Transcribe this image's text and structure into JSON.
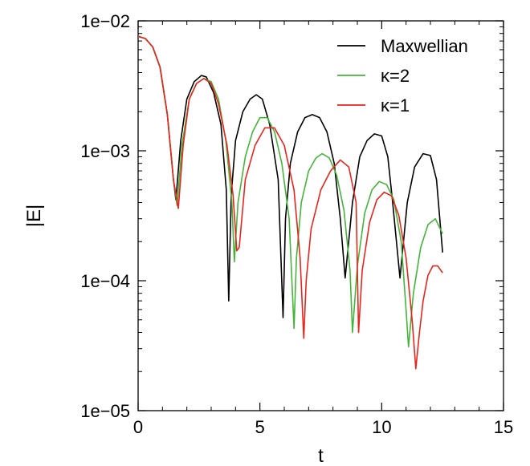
{
  "chart_data": {
    "type": "line",
    "title": "",
    "xlabel": "t",
    "ylabel": "|E|",
    "xlim": [
      0,
      15
    ],
    "ylim": [
      1e-05,
      0.01
    ],
    "yscale": "log",
    "grid": false,
    "legend_position": "top-right",
    "x_ticks": [
      0,
      5,
      10,
      15
    ],
    "x_tick_labels": [
      "0",
      "5",
      "10",
      "15"
    ],
    "y_ticks": [
      1e-05,
      0.0001,
      0.001,
      0.01
    ],
    "y_tick_labels": [
      "1e−05",
      "1e−04",
      "1e−03",
      "1e−02"
    ],
    "series": [
      {
        "name": "Maxwellian",
        "color": "#000000",
        "x": [
          0.0,
          0.3,
          0.6,
          0.9,
          1.2,
          1.45,
          1.55,
          1.75,
          2.0,
          2.3,
          2.6,
          2.8,
          3.1,
          3.4,
          3.62,
          3.72,
          3.82,
          4.0,
          4.3,
          4.6,
          4.85,
          5.1,
          5.4,
          5.75,
          5.95,
          6.05,
          6.25,
          6.55,
          6.85,
          7.15,
          7.45,
          7.75,
          8.05,
          8.3,
          8.5,
          8.8,
          9.1,
          9.4,
          9.7,
          10.0,
          10.25,
          10.45,
          10.75,
          11.05,
          11.35,
          11.7,
          12.0,
          12.25,
          12.5
        ],
        "y": [
          0.0076,
          0.0073,
          0.0063,
          0.0044,
          0.0019,
          0.0006,
          0.00042,
          0.0012,
          0.0025,
          0.0034,
          0.0038,
          0.0037,
          0.0028,
          0.0016,
          0.0005,
          7e-05,
          0.00045,
          0.0012,
          0.002,
          0.0025,
          0.0027,
          0.0025,
          0.0016,
          0.0006,
          5.2e-05,
          0.0003,
          0.0008,
          0.0014,
          0.0018,
          0.0019,
          0.0018,
          0.0014,
          0.0008,
          0.0003,
          0.000105,
          0.0004,
          0.0009,
          0.0012,
          0.00135,
          0.0013,
          0.0009,
          0.0004,
          0.000105,
          0.0004,
          0.00075,
          0.00095,
          0.00092,
          0.0006,
          0.000165
        ]
      },
      {
        "name": "κ=2",
        "color": "#45b53a",
        "x": [
          0.0,
          0.3,
          0.6,
          0.9,
          1.2,
          1.45,
          1.6,
          1.8,
          2.1,
          2.4,
          2.7,
          3.0,
          3.3,
          3.6,
          3.85,
          3.95,
          4.1,
          4.4,
          4.7,
          5.0,
          5.3,
          5.6,
          5.9,
          6.2,
          6.4,
          6.5,
          6.7,
          7.0,
          7.3,
          7.55,
          7.85,
          8.15,
          8.45,
          8.7,
          8.8,
          9.0,
          9.3,
          9.6,
          9.9,
          10.2,
          10.5,
          10.8,
          11.0,
          11.1,
          11.3,
          11.6,
          11.9,
          12.2,
          12.5
        ],
        "y": [
          0.0076,
          0.0073,
          0.0063,
          0.0044,
          0.0019,
          0.0006,
          0.00038,
          0.0011,
          0.0025,
          0.0033,
          0.0036,
          0.0034,
          0.0025,
          0.0012,
          0.0004,
          0.00014,
          0.0004,
          0.0009,
          0.0014,
          0.0018,
          0.0018,
          0.0014,
          0.0008,
          0.0003,
          4.3e-05,
          0.00015,
          0.0004,
          0.0007,
          0.00088,
          0.00095,
          0.00088,
          0.00065,
          0.00035,
          0.00012,
          4e-05,
          0.00013,
          0.00033,
          0.0005,
          0.00058,
          0.00055,
          0.00042,
          0.0002,
          6e-05,
          3.1e-05,
          8e-05,
          0.00018,
          0.00027,
          0.0003,
          0.00023
        ]
      },
      {
        "name": "κ=1",
        "color": "#e8251d",
        "x": [
          0.0,
          0.3,
          0.6,
          0.9,
          1.2,
          1.45,
          1.65,
          1.85,
          2.1,
          2.4,
          2.7,
          3.0,
          3.3,
          3.65,
          3.9,
          4.05,
          4.15,
          4.4,
          4.8,
          5.2,
          5.6,
          6.0,
          6.4,
          6.65,
          6.8,
          6.9,
          7.1,
          7.5,
          7.9,
          8.3,
          8.65,
          8.95,
          9.05,
          9.2,
          9.5,
          9.8,
          10.1,
          10.4,
          10.7,
          11.0,
          11.25,
          11.4,
          11.55,
          11.7,
          11.9,
          12.1,
          12.3,
          12.5
        ],
        "y": [
          0.0076,
          0.0073,
          0.0063,
          0.0044,
          0.0019,
          0.0006,
          0.00036,
          0.0011,
          0.0025,
          0.0033,
          0.0036,
          0.0033,
          0.0023,
          0.0011,
          0.00045,
          0.00017,
          0.00018,
          0.0006,
          0.0011,
          0.0015,
          0.0015,
          0.0011,
          0.0005,
          0.00015,
          3.6e-05,
          0.0001,
          0.00025,
          0.0005,
          0.0007,
          0.00085,
          0.00075,
          0.0004,
          4e-05,
          0.00012,
          0.00028,
          0.00042,
          0.00048,
          0.00045,
          0.00032,
          0.00015,
          5e-05,
          2.1e-05,
          4e-05,
          7e-05,
          0.00011,
          0.00013,
          0.00013,
          0.000115
        ]
      }
    ]
  }
}
